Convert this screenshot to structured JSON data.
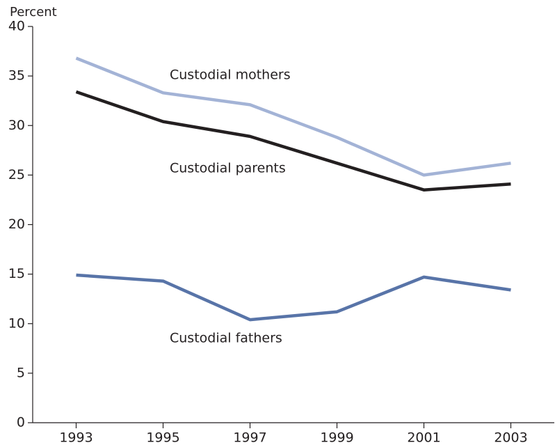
{
  "chart_data": {
    "type": "line",
    "y_label": "Percent",
    "x": [
      1993,
      1995,
      1997,
      1999,
      2001,
      2003
    ],
    "xlim": [
      1992,
      2004
    ],
    "xticks": [
      1993,
      1995,
      1997,
      1999,
      2001,
      2003
    ],
    "ylim": [
      0,
      40
    ],
    "yticks": [
      0,
      5,
      10,
      15,
      20,
      25,
      30,
      35,
      40
    ],
    "series": [
      {
        "name": "Custodial mothers",
        "color": "#a3b3d6",
        "values": [
          36.8,
          33.3,
          32.1,
          28.8,
          25.0,
          26.2
        ]
      },
      {
        "name": "Custodial parents",
        "color": "#231f20",
        "values": [
          33.4,
          30.4,
          28.9,
          26.2,
          23.5,
          24.1
        ]
      },
      {
        "name": "Custodial fathers",
        "color": "#5874a8",
        "values": [
          14.9,
          14.3,
          10.4,
          11.2,
          14.7,
          13.4
        ]
      }
    ]
  }
}
